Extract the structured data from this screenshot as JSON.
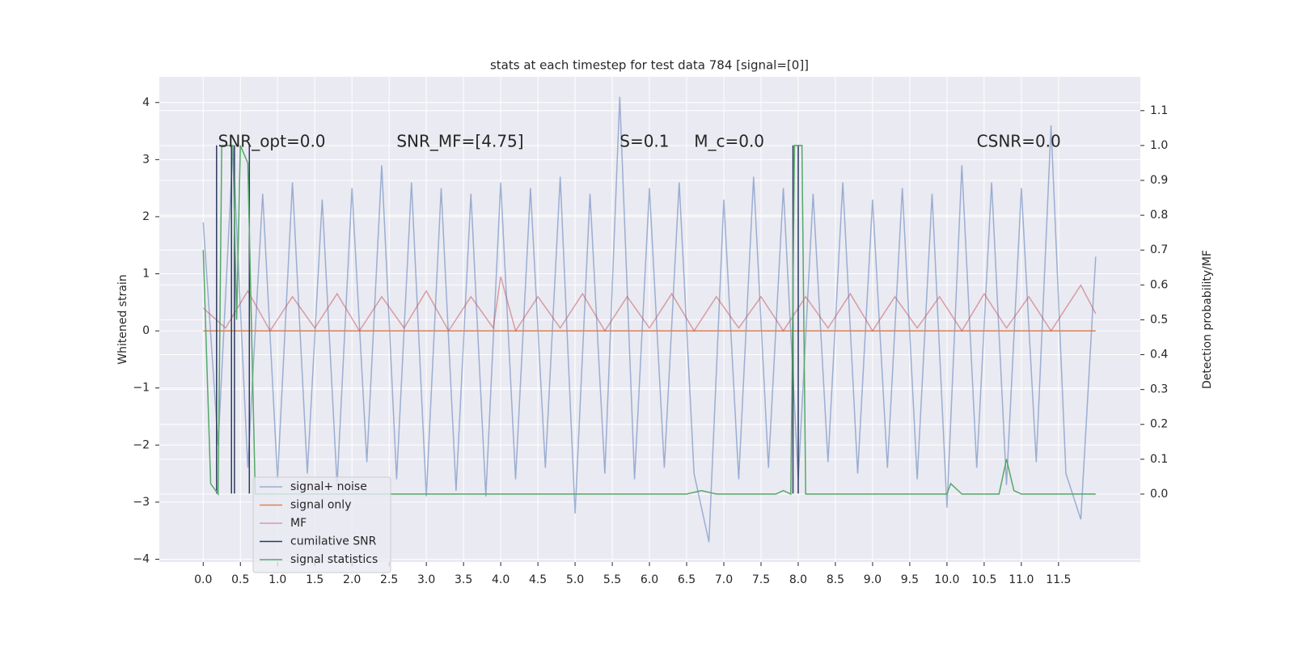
{
  "chart_data": {
    "type": "line",
    "title": "stats at each timestep for test data 784 [signal=[0]]",
    "ylabel": "Whitened strain",
    "y2label": "Detection probability/MF",
    "xlim": [
      -0.59,
      12.6
    ],
    "ylim": [
      -4.05,
      4.45
    ],
    "y2lim": [
      -0.195,
      1.197
    ],
    "xticks": [
      {
        "value": 0,
        "label": "0.0"
      },
      0.5,
      {
        "value": 1,
        "label": "1.0"
      },
      1.5,
      {
        "value": 2,
        "label": "2.0"
      },
      2.5,
      {
        "value": 3,
        "label": "3.0"
      },
      3.5,
      {
        "value": 4,
        "label": "4.0"
      },
      4.5,
      {
        "value": 5,
        "label": "5.0"
      },
      5.5,
      {
        "value": 6,
        "label": "6.0"
      },
      6.5,
      {
        "value": 7,
        "label": "7.0"
      },
      7.5,
      {
        "value": 8,
        "label": "8.0"
      },
      8.5,
      {
        "value": 9,
        "label": "9.0"
      },
      9.5,
      {
        "value": 10,
        "label": "10.0"
      },
      10.5,
      {
        "value": 11,
        "label": "11.0"
      },
      11.5
    ],
    "yticks": [
      {
        "value": -4,
        "label": "−4"
      },
      {
        "value": -3,
        "label": "−3"
      },
      {
        "value": -2,
        "label": "−2"
      },
      {
        "value": -1,
        "label": "−1"
      },
      0,
      1,
      2,
      3,
      4
    ],
    "y2ticks": [
      {
        "value": 0,
        "label": "0.0"
      },
      0.1,
      0.2,
      0.3,
      0.4,
      0.5,
      0.6,
      0.7,
      0.8,
      0.9,
      {
        "value": 1,
        "label": "1.0"
      },
      1.1
    ],
    "grid": true,
    "y2grid": true,
    "legend": "lower left",
    "annotations": [
      {
        "text": "SNR_opt=0.0",
        "x": 0.2,
        "y": 3.3
      },
      {
        "text": "SNR_MF=[4.75]",
        "x": 2.6,
        "y": 3.3
      },
      {
        "text": "S=0.1",
        "x": 5.6,
        "y": 3.3
      },
      {
        "text": "M_c=0.0",
        "x": 6.6,
        "y": 3.3
      },
      {
        "text": "CSNR=0.0",
        "x": 10.4,
        "y": 3.3
      }
    ],
    "series": [
      {
        "name": "signal+ noise",
        "color": "#4c72b0",
        "opacity": 0.5,
        "x": [
          0.0,
          0.2,
          0.4,
          0.6,
          0.8,
          1.0,
          1.2,
          1.4,
          1.6,
          1.8,
          2.0,
          2.2,
          2.4,
          2.6,
          2.8,
          3.0,
          3.2,
          3.4,
          3.6,
          3.8,
          4.0,
          4.2,
          4.4,
          4.6,
          4.8,
          5.0,
          5.2,
          5.4,
          5.6,
          5.8,
          6.0,
          6.2,
          6.4,
          6.6,
          6.8,
          7.0,
          7.2,
          7.4,
          7.6,
          7.8,
          8.0,
          8.2,
          8.4,
          8.6,
          8.8,
          9.0,
          9.2,
          9.4,
          9.6,
          9.8,
          10.0,
          10.2,
          10.4,
          10.6,
          10.8,
          11.0,
          11.2,
          11.4,
          11.6,
          11.8,
          12.0
        ],
        "values": [
          1.9,
          -2.0,
          3.2,
          -2.4,
          2.4,
          -2.6,
          2.6,
          -2.5,
          2.3,
          -2.7,
          2.5,
          -2.3,
          2.9,
          -2.6,
          2.6,
          -2.9,
          2.5,
          -2.8,
          2.4,
          -2.9,
          2.6,
          -2.6,
          2.5,
          -2.4,
          2.7,
          -3.2,
          2.4,
          -2.5,
          4.1,
          -2.6,
          2.5,
          -2.4,
          2.6,
          -2.5,
          -3.7,
          2.3,
          -2.6,
          2.7,
          -2.4,
          2.5,
          -2.6,
          2.4,
          -2.3,
          2.6,
          -2.5,
          2.3,
          -2.4,
          2.5,
          -2.6,
          2.4,
          -3.1,
          2.9,
          -2.4,
          2.6,
          -2.7,
          2.5,
          -2.3,
          3.6,
          -2.5,
          -3.3,
          1.3
        ]
      },
      {
        "name": "signal only",
        "color": "#dd8452",
        "opacity": 1,
        "x": [
          0.0,
          12.0
        ],
        "values": [
          0.0,
          0.0
        ]
      },
      {
        "name": "MF",
        "color": "#c44e52",
        "opacity": 0.5,
        "x": [
          0.0,
          0.3,
          0.6,
          0.9,
          1.2,
          1.5,
          1.8,
          2.1,
          2.4,
          2.7,
          3.0,
          3.3,
          3.6,
          3.9,
          4.0,
          4.2,
          4.5,
          4.8,
          5.1,
          5.4,
          5.7,
          6.0,
          6.3,
          6.6,
          6.9,
          7.2,
          7.5,
          7.8,
          8.1,
          8.4,
          8.7,
          9.0,
          9.3,
          9.6,
          9.9,
          10.2,
          10.5,
          10.8,
          11.1,
          11.4,
          11.8,
          12.0
        ],
        "values": [
          0.4,
          0.05,
          0.7,
          0.0,
          0.6,
          0.05,
          0.65,
          0.0,
          0.6,
          0.05,
          0.7,
          0.0,
          0.6,
          0.05,
          0.95,
          0.0,
          0.6,
          0.05,
          0.65,
          0.0,
          0.6,
          0.05,
          0.65,
          0.0,
          0.6,
          0.05,
          0.6,
          0.0,
          0.6,
          0.05,
          0.65,
          0.0,
          0.6,
          0.05,
          0.6,
          0.0,
          0.65,
          0.05,
          0.6,
          0.0,
          0.8,
          0.3
        ]
      },
      {
        "name": "cumilative SNR",
        "color": "#2b3a5e",
        "opacity": 1,
        "x": [
          0.18,
          0.18,
          0.18,
          0.38,
          0.38,
          0.38,
          0.42,
          0.42,
          0.42,
          0.62,
          0.62,
          0.62,
          7.93,
          7.93,
          7.93,
          8.0,
          8.0
        ],
        "values": [
          -2.85,
          3.25,
          null,
          -2.85,
          3.25,
          null,
          -2.85,
          3.25,
          null,
          -2.85,
          3.25,
          null,
          -2.85,
          3.25,
          null,
          -2.85,
          3.25
        ]
      },
      {
        "name": "signal statistics",
        "color": "#55a868",
        "opacity": 1,
        "axis": "y2",
        "x": [
          0.0,
          0.1,
          0.2,
          0.25,
          0.4,
          0.45,
          0.5,
          0.6,
          0.7,
          2.0,
          6.5,
          6.7,
          6.9,
          7.7,
          7.8,
          7.9,
          7.95,
          8.05,
          8.1,
          10.0,
          10.05,
          10.2,
          10.7,
          10.8,
          10.9,
          11.0,
          11.4,
          12.0
        ],
        "values": [
          0.7,
          0.03,
          0.0,
          1.0,
          1.0,
          0.5,
          1.0,
          0.95,
          0.0,
          0.0,
          0.0,
          0.01,
          0.0,
          0.0,
          0.01,
          0.0,
          1.0,
          1.0,
          0.0,
          0.0,
          0.03,
          0.0,
          0.0,
          0.1,
          0.01,
          0.0,
          0.0,
          0.0
        ]
      }
    ]
  }
}
